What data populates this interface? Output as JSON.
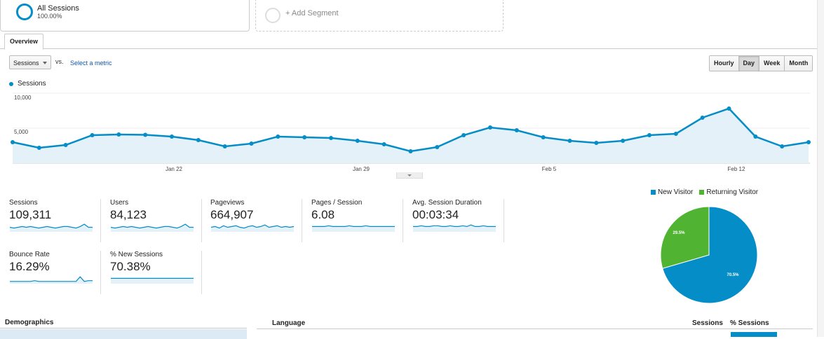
{
  "segments": {
    "active": {
      "title": "All Sessions",
      "percent": "100.00%"
    },
    "add_label": "+ Add Segment"
  },
  "tabs": {
    "overview": "Overview"
  },
  "controls": {
    "metric_dropdown": "Sessions",
    "vs": "vs.",
    "select_metric": "Select a metric",
    "granularity": [
      "Hourly",
      "Day",
      "Week",
      "Month"
    ],
    "granularity_active": "Day"
  },
  "chart_data": {
    "type": "area",
    "title": "",
    "legend": [
      "Sessions"
    ],
    "series": [
      {
        "name": "Sessions",
        "values": [
          3000,
          2200,
          2600,
          4000,
          4100,
          4050,
          3800,
          3300,
          2400,
          2800,
          3800,
          3700,
          3600,
          3200,
          2700,
          1700,
          2300,
          4000,
          5100,
          4700,
          3700,
          3200,
          2900,
          3200,
          4000,
          4200,
          6500,
          7800,
          3800,
          2400,
          3000
        ]
      }
    ],
    "x_tick_labels": [
      "Jan 22",
      "Jan 29",
      "Feb 5",
      "Feb 12"
    ],
    "y_tick_labels": [
      "10,000",
      "5,000"
    ],
    "ylim": [
      0,
      10000
    ],
    "color": "#058dc7"
  },
  "metrics": [
    {
      "title": "Sessions",
      "value": "109,311",
      "spark": [
        5,
        4,
        5,
        6,
        5,
        6,
        5,
        4,
        5,
        6,
        5,
        4,
        5,
        6,
        6,
        5,
        4,
        6,
        9,
        5,
        5
      ]
    },
    {
      "title": "Users",
      "value": "84,123",
      "spark": [
        5,
        4,
        5,
        6,
        5,
        6,
        5,
        4,
        5,
        6,
        5,
        4,
        5,
        6,
        6,
        5,
        4,
        6,
        9,
        5,
        5
      ]
    },
    {
      "title": "Pageviews",
      "value": "664,907",
      "spark": [
        5,
        6,
        4,
        7,
        5,
        6,
        7,
        5,
        4,
        6,
        7,
        5,
        6,
        8,
        5,
        6,
        7,
        5,
        6,
        5,
        6
      ]
    },
    {
      "title": "Pages / Session",
      "value": "6.08",
      "spark": [
        6,
        6,
        6,
        6,
        7,
        6,
        6,
        6,
        6,
        7,
        6,
        6,
        6,
        7,
        6,
        6,
        6,
        6,
        6,
        6,
        6
      ]
    },
    {
      "title": "Avg. Session Duration",
      "value": "00:03:34",
      "spark": [
        6,
        6,
        7,
        6,
        6,
        7,
        7,
        6,
        6,
        7,
        6,
        6,
        7,
        6,
        8,
        6,
        6,
        7,
        6,
        6,
        6
      ]
    },
    {
      "title": "Bounce Rate",
      "value": "16.29%",
      "spark": [
        2,
        2,
        2,
        2,
        2,
        2,
        3,
        2,
        2,
        2,
        2,
        2,
        2,
        2,
        2,
        2,
        2,
        8,
        2,
        3,
        3
      ]
    },
    {
      "title": "% New Sessions",
      "value": "70.38%",
      "spark": [
        6,
        6,
        6,
        6,
        6,
        6,
        6,
        6,
        6,
        6,
        6,
        6,
        6,
        6,
        6,
        6,
        6,
        6,
        6,
        6,
        6
      ]
    }
  ],
  "pie": {
    "slices": [
      {
        "name": "New Visitor",
        "value": 70.5,
        "label": "70.5%",
        "color": "#058dc7"
      },
      {
        "name": "Returning Visitor",
        "value": 29.5,
        "label": "29.5%",
        "color": "#50b432"
      }
    ]
  },
  "tables": {
    "demographics": "Demographics",
    "language": "Language",
    "sessions": "Sessions",
    "pct_sessions": "% Sessions"
  }
}
